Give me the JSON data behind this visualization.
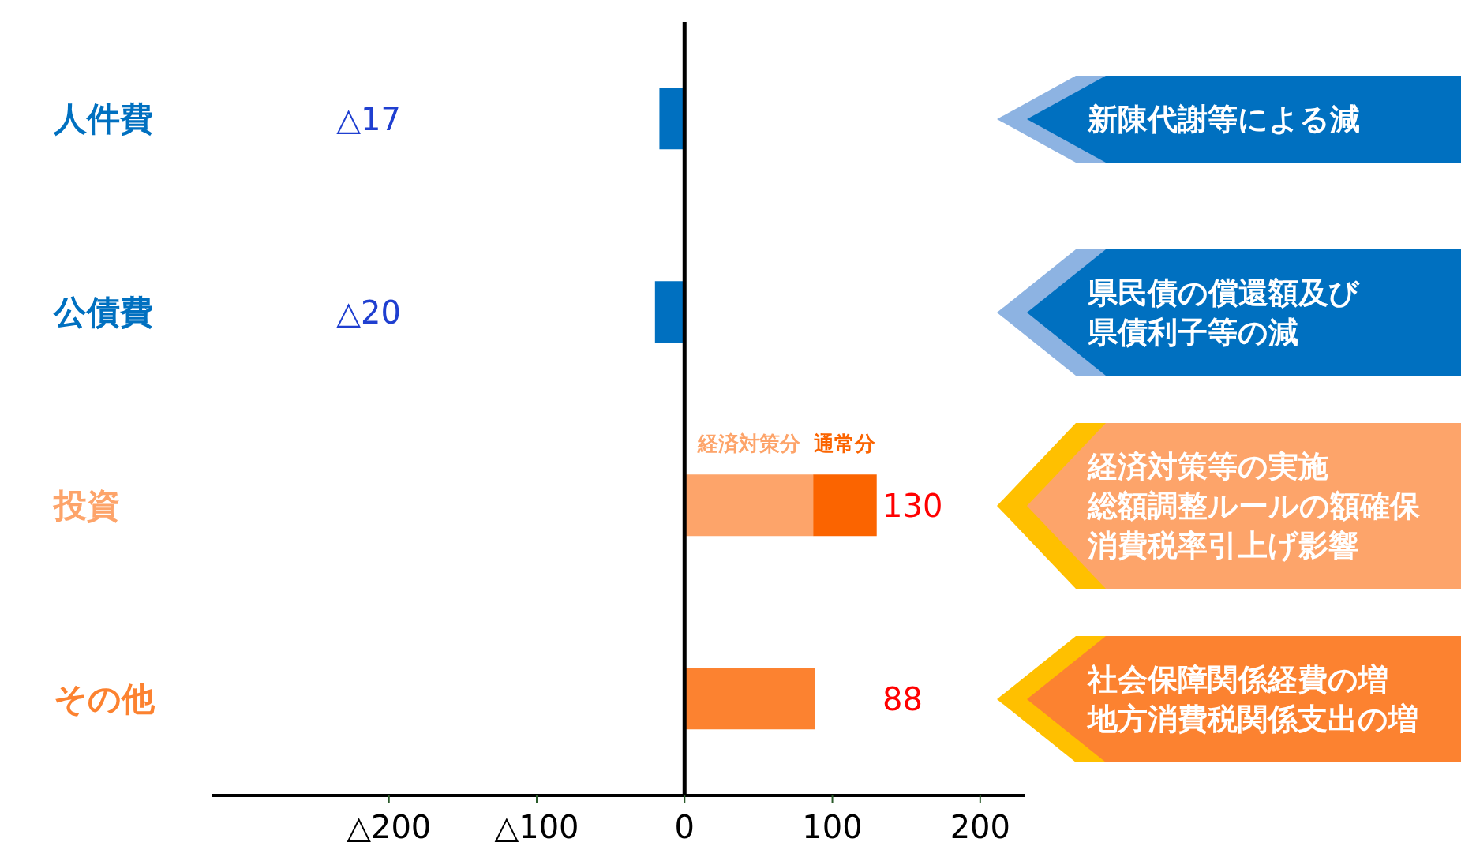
{
  "chart_data": {
    "type": "bar",
    "orientation": "horizontal",
    "stacked": true,
    "categories": [
      "人件費",
      "公債費",
      "投資",
      "その他"
    ],
    "series": [
      {
        "values": [
          -17,
          -20,
          null,
          88
        ],
        "colors": [
          "#0070c0",
          "#0070c0",
          null,
          "#fc8230"
        ]
      },
      {
        "name": "経済対策分",
        "color": "#fda46a",
        "values": [
          null,
          null,
          87,
          null
        ]
      },
      {
        "name": "通常分",
        "color": "#fb6400",
        "values": [
          null,
          null,
          43,
          null
        ]
      }
    ],
    "value_labels": [
      "△17",
      "△20",
      "130",
      "88"
    ],
    "xlim": [
      -320,
      230
    ],
    "xticks": [
      {
        "value": -200,
        "label": "△200"
      },
      {
        "value": -100,
        "label": "△100"
      },
      0,
      100,
      200
    ],
    "ref_lines": [
      {
        "axis": "x",
        "value": 0,
        "color": "#000000"
      }
    ],
    "annotations": [
      "新陳代謝等による減",
      "県民債の償還額及び県債利子等の減",
      "経済対策等の実施総額調整ルールの額確保消費税率引上げ影響",
      "社会保障関係経費の増地方消費税関係支出の増"
    ],
    "grid": false,
    "legend": false
  }
}
